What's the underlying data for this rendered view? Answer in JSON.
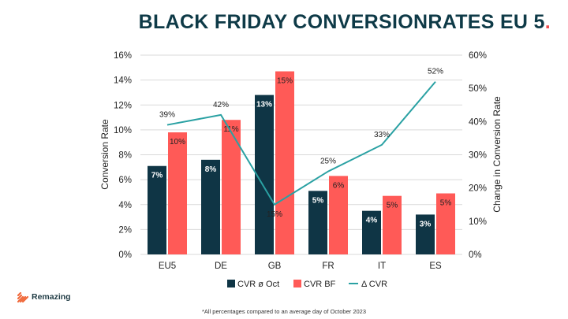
{
  "header": {
    "title": "BLACK FRIDAY CONVERSIONRATES EU 5",
    "title_dot": "."
  },
  "brand": {
    "name": "Remazing"
  },
  "footnote": "*All percentages compared to an average day of October 2023",
  "colors": {
    "navy": "#0f3545",
    "coral": "#ff5a57",
    "teal": "#2aa1a3",
    "axis_text": "#222222",
    "gridline": "#d9d9d9"
  },
  "chart_data": {
    "type": "bar",
    "categories": [
      "EU5",
      "DE",
      "GB",
      "FR",
      "IT",
      "ES"
    ],
    "series": [
      {
        "name": "CVR ø Oct",
        "axis": "left",
        "kind": "bar",
        "values": [
          7.1,
          7.6,
          12.8,
          5.1,
          3.5,
          3.2
        ],
        "labels": [
          "7%",
          "8%",
          "13%",
          "5%",
          "4%",
          "3%"
        ]
      },
      {
        "name": "CVR BF",
        "axis": "left",
        "kind": "bar",
        "values": [
          9.8,
          10.8,
          14.7,
          6.3,
          4.7,
          4.9
        ],
        "labels": [
          "10%",
          "11%",
          "15%",
          "6%",
          "5%",
          "5%"
        ]
      },
      {
        "name": "Δ CVR",
        "axis": "right",
        "kind": "line",
        "values": [
          39,
          42,
          15,
          25,
          33,
          52
        ],
        "labels": [
          "39%",
          "42%",
          "15%",
          "25%",
          "33%",
          "52%"
        ]
      }
    ],
    "ylabel": "Conversion Rate",
    "y2label": "Change in Conversion Rate",
    "ylim": [
      0,
      16
    ],
    "y2lim": [
      0,
      60
    ],
    "yticks": [
      "0%",
      "2%",
      "4%",
      "6%",
      "8%",
      "10%",
      "12%",
      "14%",
      "16%"
    ],
    "y2ticks": [
      "0%",
      "10%",
      "20%",
      "30%",
      "40%",
      "50%",
      "60%"
    ],
    "legend_position": "bottom"
  }
}
